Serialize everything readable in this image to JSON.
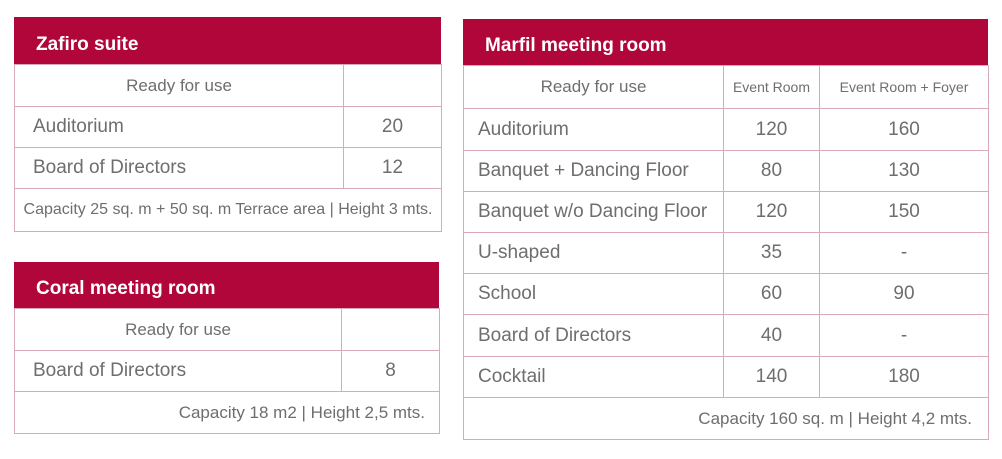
{
  "zafiro": {
    "title": "Zafiro suite",
    "header": "Ready for use",
    "rows": [
      {
        "label": "Auditorium",
        "value": "20"
      },
      {
        "label": "Board of Directors",
        "value": "12"
      }
    ],
    "footer": "Capacity 25 sq. m + 50 sq. m Terrace area | Height 3 mts."
  },
  "coral": {
    "title": "Coral meeting room",
    "header": "Ready for use",
    "rows": [
      {
        "label": "Board of Directors",
        "value": "8"
      }
    ],
    "footer": "Capacity 18 m2 | Height 2,5 mts."
  },
  "marfil": {
    "title": "Marfil meeting room",
    "headers": [
      "Ready for use",
      "Event Room",
      "Event Room + Foyer"
    ],
    "rows": [
      {
        "label": "Auditorium",
        "event": "120",
        "foyer": "160"
      },
      {
        "label": "Banquet + Dancing Floor",
        "event": "80",
        "foyer": "130"
      },
      {
        "label": "Banquet w/o Dancing Floor",
        "event": "120",
        "foyer": "150"
      },
      {
        "label": "U-shaped",
        "event": "35",
        "foyer": "-"
      },
      {
        "label": "School",
        "event": "60",
        "foyer": "90"
      },
      {
        "label": "Board of Directors",
        "event": "40",
        "foyer": "-"
      },
      {
        "label": "Cocktail",
        "event": "140",
        "foyer": "180"
      }
    ],
    "footer": "Capacity 160 sq. m | Height 4,2 mts."
  },
  "colors": {
    "accent": "#b0063a",
    "border": "#d8aabb",
    "text": "#6e6e6e"
  }
}
